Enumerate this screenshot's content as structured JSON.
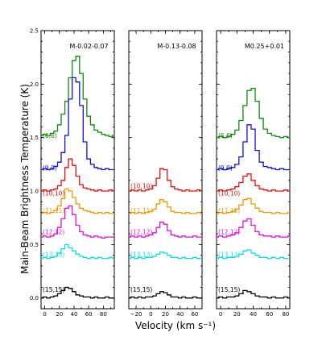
{
  "chart_data": {
    "type": "line",
    "ylabel": "Main-Beam Brightness Temperature (K)",
    "xlabel": "Velocity (km s⁻¹)",
    "colors": {
      "(6,6)": "#118811",
      "(9,9)": "#1111cc",
      "(10,10)": "#dd1111",
      "(11,11)": "#ee9900",
      "(12,12)": "#dd11dd",
      "(13,13)": "#11dddd",
      "(15,15)": "#000000"
    },
    "panels": [
      {
        "title": "M-0.02-0.07",
        "xlim": [
          -5,
          95
        ],
        "ylim": [
          -0.1,
          2.5
        ],
        "xticks": [
          "0",
          "20",
          "40",
          "60",
          "80"
        ],
        "xtick_values": [
          0,
          20,
          40,
          60,
          80
        ],
        "yticks": [
          "0.0",
          "0.5",
          "1.0",
          "1.5",
          "2.0",
          "2.5"
        ],
        "ytick_values": [
          0,
          0.5,
          1.0,
          1.5,
          2.0,
          2.5
        ],
        "series": [
          {
            "name": "(6,6)",
            "label_y": 1.52,
            "x": [
              -5,
              0,
              5,
              10,
              15,
              20,
              25,
              30,
              35,
              40,
              45,
              50,
              55,
              60,
              65,
              70,
              75,
              80,
              85,
              90,
              95
            ],
            "y": [
              1.52,
              1.53,
              1.52,
              1.54,
              1.56,
              1.62,
              1.72,
              1.84,
              2.06,
              2.22,
              2.26,
              2.1,
              1.86,
              1.7,
              1.62,
              1.57,
              1.55,
              1.53,
              1.52,
              1.51,
              1.52
            ]
          },
          {
            "name": "(9,9)",
            "label_y": 1.22,
            "x": [
              -5,
              0,
              5,
              10,
              15,
              20,
              25,
              30,
              35,
              40,
              45,
              50,
              55,
              60,
              65,
              70,
              75,
              80,
              85,
              90,
              95
            ],
            "y": [
              1.2,
              1.21,
              1.2,
              1.21,
              1.23,
              1.27,
              1.36,
              1.52,
              1.86,
              2.06,
              2.02,
              1.8,
              1.46,
              1.3,
              1.25,
              1.22,
              1.21,
              1.2,
              1.21,
              1.2,
              1.2
            ]
          },
          {
            "name": "(10,10)",
            "label_y": 0.98,
            "x": [
              -5,
              0,
              5,
              10,
              15,
              20,
              25,
              30,
              35,
              40,
              45,
              50,
              55,
              60,
              65,
              70,
              75,
              80,
              85,
              90,
              95
            ],
            "y": [
              1.0,
              1.01,
              1.0,
              1.01,
              1.02,
              1.05,
              1.1,
              1.22,
              1.3,
              1.24,
              1.14,
              1.06,
              1.03,
              1.02,
              1.01,
              1.0,
              1.01,
              1.0,
              1.0,
              1.01,
              1.0
            ]
          },
          {
            "name": "(11,11)",
            "label_y": 0.82,
            "x": [
              -5,
              0,
              5,
              10,
              15,
              20,
              25,
              30,
              35,
              40,
              45,
              50,
              55,
              60,
              65,
              70,
              75,
              80,
              85,
              90,
              95
            ],
            "y": [
              0.79,
              0.8,
              0.79,
              0.8,
              0.82,
              0.86,
              0.93,
              1.02,
              1.0,
              0.94,
              0.88,
              0.84,
              0.82,
              0.81,
              0.8,
              0.79,
              0.8,
              0.79,
              0.8,
              0.79,
              0.79
            ]
          },
          {
            "name": "(12,12)",
            "label_y": 0.62,
            "x": [
              -5,
              0,
              5,
              10,
              15,
              20,
              25,
              30,
              35,
              40,
              45,
              50,
              55,
              60,
              65,
              70,
              75,
              80,
              85,
              90,
              95
            ],
            "y": [
              0.57,
              0.58,
              0.57,
              0.58,
              0.6,
              0.66,
              0.74,
              0.84,
              0.86,
              0.78,
              0.68,
              0.62,
              0.59,
              0.58,
              0.57,
              0.58,
              0.57,
              0.56,
              0.57,
              0.57,
              0.57
            ]
          },
          {
            "name": "(13,13)",
            "label_y": 0.41,
            "x": [
              -5,
              0,
              5,
              10,
              15,
              20,
              25,
              30,
              35,
              40,
              45,
              50,
              55,
              60,
              65,
              70,
              75,
              80,
              85,
              90,
              95
            ],
            "y": [
              0.37,
              0.38,
              0.37,
              0.38,
              0.39,
              0.42,
              0.46,
              0.5,
              0.47,
              0.44,
              0.41,
              0.39,
              0.38,
              0.37,
              0.38,
              0.37,
              0.38,
              0.37,
              0.37,
              0.38,
              0.37
            ]
          },
          {
            "name": "(15,15)",
            "label_y": 0.08,
            "x": [
              -5,
              0,
              5,
              10,
              15,
              20,
              25,
              30,
              35,
              40,
              45,
              50,
              55,
              60,
              65,
              70,
              75,
              80,
              85,
              90,
              95
            ],
            "y": [
              0.0,
              0.01,
              0.0,
              0.01,
              0.02,
              0.04,
              0.07,
              0.1,
              0.09,
              0.06,
              0.03,
              0.02,
              0.01,
              0.01,
              0.0,
              0.01,
              0.0,
              0.0,
              0.01,
              0.0,
              0.0
            ]
          }
        ]
      },
      {
        "title": "M-0.13-0.08",
        "xlim": [
          -30,
          70
        ],
        "ylim": [
          -0.1,
          2.5
        ],
        "xticks": [
          "−20",
          "0",
          "20",
          "40",
          "60"
        ],
        "xtick_values": [
          -20,
          0,
          20,
          40,
          60
        ],
        "yticks": [],
        "ytick_values": [
          0,
          0.5,
          1.0,
          1.5,
          2.0,
          2.5
        ],
        "series": [
          {
            "name": "(10,10)",
            "label_y": 1.05,
            "x": [
              -30,
              -25,
              -20,
              -15,
              -10,
              -5,
              0,
              5,
              10,
              15,
              20,
              25,
              30,
              35,
              40,
              45,
              50,
              55,
              60,
              65,
              70
            ],
            "y": [
              1.0,
              1.01,
              1.0,
              1.01,
              1.0,
              1.01,
              1.02,
              1.05,
              1.12,
              1.21,
              1.2,
              1.1,
              1.04,
              1.02,
              1.01,
              1.0,
              1.01,
              1.0,
              1.0,
              1.01,
              1.0
            ]
          },
          {
            "name": "(11,11)",
            "label_y": 0.82,
            "x": [
              -30,
              -25,
              -20,
              -15,
              -10,
              -5,
              0,
              5,
              10,
              15,
              20,
              25,
              30,
              35,
              40,
              45,
              50,
              55,
              60,
              65,
              70
            ],
            "y": [
              0.79,
              0.8,
              0.79,
              0.8,
              0.79,
              0.8,
              0.81,
              0.83,
              0.88,
              0.92,
              0.9,
              0.85,
              0.81,
              0.8,
              0.8,
              0.79,
              0.8,
              0.79,
              0.79,
              0.8,
              0.79
            ]
          },
          {
            "name": "(12,12)",
            "label_y": 0.62,
            "x": [
              -30,
              -25,
              -20,
              -15,
              -10,
              -5,
              0,
              5,
              10,
              15,
              20,
              25,
              30,
              35,
              40,
              45,
              50,
              55,
              60,
              65,
              70
            ],
            "y": [
              0.57,
              0.58,
              0.57,
              0.58,
              0.57,
              0.58,
              0.59,
              0.61,
              0.66,
              0.71,
              0.69,
              0.63,
              0.59,
              0.58,
              0.57,
              0.58,
              0.57,
              0.57,
              0.58,
              0.57,
              0.57
            ]
          },
          {
            "name": "(13,13)",
            "label_y": 0.41,
            "x": [
              -30,
              -25,
              -20,
              -15,
              -10,
              -5,
              0,
              5,
              10,
              15,
              20,
              25,
              30,
              35,
              40,
              45,
              50,
              55,
              60,
              65,
              70
            ],
            "y": [
              0.37,
              0.38,
              0.37,
              0.38,
              0.37,
              0.38,
              0.38,
              0.39,
              0.41,
              0.43,
              0.42,
              0.4,
              0.38,
              0.38,
              0.37,
              0.38,
              0.37,
              0.37,
              0.38,
              0.37,
              0.37
            ]
          },
          {
            "name": "(15,15)",
            "label_y": 0.08,
            "x": [
              -30,
              -25,
              -20,
              -15,
              -10,
              -5,
              0,
              5,
              10,
              15,
              20,
              25,
              30,
              35,
              40,
              45,
              50,
              55,
              60,
              65,
              70
            ],
            "y": [
              0.0,
              0.01,
              0.0,
              0.01,
              0.0,
              0.01,
              0.01,
              0.02,
              0.04,
              0.06,
              0.05,
              0.03,
              0.01,
              0.01,
              0.0,
              0.01,
              0.0,
              0.0,
              0.01,
              0.0,
              0.0
            ]
          }
        ]
      },
      {
        "title": "M0.25+0.01",
        "xlim": [
          -5,
          85
        ],
        "ylim": [
          -0.1,
          2.5
        ],
        "xticks": [
          "0",
          "20",
          "40",
          "60",
          "80"
        ],
        "xtick_values": [
          0,
          20,
          40,
          60,
          80
        ],
        "yticks": [],
        "ytick_values": [
          0,
          0.5,
          1.0,
          1.5,
          2.0,
          2.5
        ],
        "series": [
          {
            "name": "(6,6)",
            "label_y": 1.52,
            "x": [
              -5,
              0,
              5,
              10,
              15,
              20,
              25,
              30,
              35,
              40,
              45,
              50,
              55,
              60,
              65,
              70,
              75,
              80,
              85
            ],
            "y": [
              1.5,
              1.51,
              1.5,
              1.51,
              1.53,
              1.57,
              1.66,
              1.8,
              1.94,
              1.96,
              1.84,
              1.68,
              1.58,
              1.54,
              1.52,
              1.51,
              1.5,
              1.51,
              1.5
            ]
          },
          {
            "name": "(9,9)",
            "label_y": 1.22,
            "x": [
              -5,
              0,
              5,
              10,
              15,
              20,
              25,
              30,
              35,
              40,
              45,
              50,
              55,
              60,
              65,
              70,
              75,
              80,
              85
            ],
            "y": [
              1.2,
              1.21,
              1.2,
              1.21,
              1.22,
              1.25,
              1.32,
              1.46,
              1.62,
              1.58,
              1.38,
              1.27,
              1.23,
              1.22,
              1.21,
              1.2,
              1.21,
              1.2,
              1.2
            ]
          },
          {
            "name": "(10,10)",
            "label_y": 0.98,
            "x": [
              -5,
              0,
              5,
              10,
              15,
              20,
              25,
              30,
              35,
              40,
              45,
              50,
              55,
              60,
              65,
              70,
              75,
              80,
              85
            ],
            "y": [
              1.0,
              1.01,
              1.0,
              1.01,
              1.02,
              1.04,
              1.08,
              1.14,
              1.16,
              1.1,
              1.05,
              1.02,
              1.01,
              1.0,
              1.01,
              1.0,
              1.0,
              1.01,
              1.0
            ]
          },
          {
            "name": "(11,11)",
            "label_y": 0.82,
            "x": [
              -5,
              0,
              5,
              10,
              15,
              20,
              25,
              30,
              35,
              40,
              45,
              50,
              55,
              60,
              65,
              70,
              75,
              80,
              85
            ],
            "y": [
              0.79,
              0.8,
              0.79,
              0.8,
              0.81,
              0.83,
              0.87,
              0.92,
              0.93,
              0.88,
              0.84,
              0.81,
              0.8,
              0.8,
              0.79,
              0.8,
              0.79,
              0.79,
              0.8
            ]
          },
          {
            "name": "(12,12)",
            "label_y": 0.62,
            "x": [
              -5,
              0,
              5,
              10,
              15,
              20,
              25,
              30,
              35,
              40,
              45,
              50,
              55,
              60,
              65,
              70,
              75,
              80,
              85
            ],
            "y": [
              0.57,
              0.58,
              0.57,
              0.58,
              0.59,
              0.61,
              0.66,
              0.72,
              0.74,
              0.68,
              0.62,
              0.59,
              0.58,
              0.58,
              0.57,
              0.58,
              0.57,
              0.57,
              0.58
            ]
          },
          {
            "name": "(13,13)",
            "label_y": 0.41,
            "x": [
              -5,
              0,
              5,
              10,
              15,
              20,
              25,
              30,
              35,
              40,
              45,
              50,
              55,
              60,
              65,
              70,
              75,
              80,
              85
            ],
            "y": [
              0.37,
              0.38,
              0.37,
              0.38,
              0.38,
              0.39,
              0.41,
              0.44,
              0.45,
              0.42,
              0.4,
              0.38,
              0.38,
              0.37,
              0.38,
              0.37,
              0.38,
              0.37,
              0.37
            ]
          },
          {
            "name": "(15,15)",
            "label_y": 0.08,
            "x": [
              -5,
              0,
              5,
              10,
              15,
              20,
              25,
              30,
              35,
              40,
              45,
              50,
              55,
              60,
              65,
              70,
              75,
              80,
              85
            ],
            "y": [
              0.0,
              0.01,
              0.0,
              0.01,
              0.01,
              0.02,
              0.04,
              0.07,
              0.06,
              0.04,
              0.02,
              0.01,
              0.01,
              0.0,
              0.01,
              0.0,
              0.0,
              0.01,
              0.0
            ]
          }
        ]
      }
    ]
  }
}
